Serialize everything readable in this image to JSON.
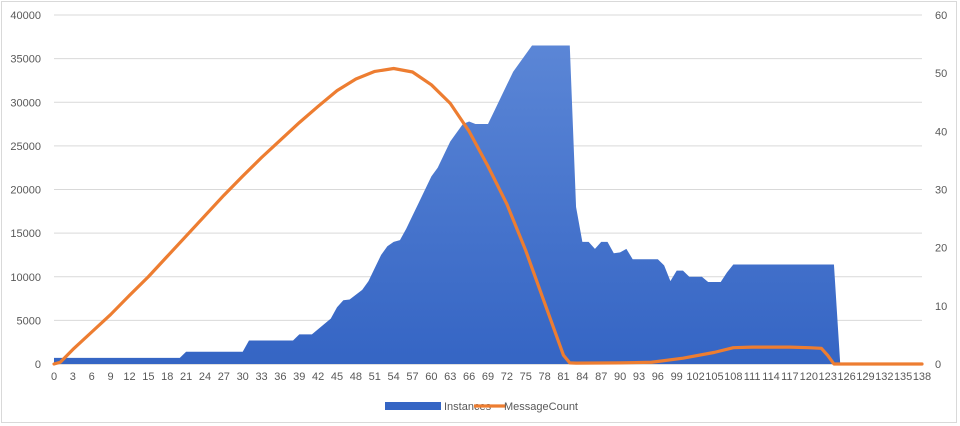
{
  "chart_data": {
    "type": "area",
    "y_left_lim": [
      0,
      40000
    ],
    "y_left_ticks": [
      0,
      5000,
      10000,
      15000,
      20000,
      25000,
      30000,
      35000,
      40000
    ],
    "y_right_lim": [
      0,
      60
    ],
    "y_right_ticks": [
      0,
      10,
      20,
      30,
      40,
      50,
      60
    ],
    "x_lim": [
      0,
      138
    ],
    "x_ticks": [
      0,
      3,
      6,
      9,
      12,
      15,
      18,
      21,
      24,
      27,
      30,
      33,
      36,
      39,
      42,
      45,
      48,
      51,
      54,
      57,
      60,
      63,
      66,
      69,
      72,
      75,
      78,
      81,
      84,
      87,
      90,
      93,
      96,
      99,
      102,
      105,
      108,
      111,
      114,
      117,
      120,
      123,
      126,
      129,
      132,
      135,
      138
    ],
    "grid": true,
    "legend_position": "bottom",
    "series": [
      {
        "name": "Instances",
        "type": "area",
        "axis": "left",
        "color": "#3565c4",
        "points": [
          [
            0,
            700
          ],
          [
            20,
            700
          ],
          [
            21,
            1400
          ],
          [
            30,
            1400
          ],
          [
            31,
            2700
          ],
          [
            38,
            2700
          ],
          [
            39,
            3400
          ],
          [
            41,
            3400
          ],
          [
            42,
            4000
          ],
          [
            44,
            5200
          ],
          [
            45,
            6500
          ],
          [
            46,
            7300
          ],
          [
            47,
            7400
          ],
          [
            49,
            8500
          ],
          [
            50,
            9500
          ],
          [
            51,
            11000
          ],
          [
            52,
            12500
          ],
          [
            53,
            13500
          ],
          [
            54,
            14000
          ],
          [
            55,
            14200
          ],
          [
            56,
            15500
          ],
          [
            57,
            17000
          ],
          [
            58,
            18500
          ],
          [
            59,
            20000
          ],
          [
            60,
            21500
          ],
          [
            61,
            22500
          ],
          [
            62,
            24000
          ],
          [
            63,
            25500
          ],
          [
            64,
            26500
          ],
          [
            65,
            27500
          ],
          [
            66,
            27800
          ],
          [
            67,
            27500
          ],
          [
            69,
            27500
          ],
          [
            70,
            29000
          ],
          [
            71,
            30500
          ],
          [
            72,
            32000
          ],
          [
            73,
            33500
          ],
          [
            74,
            34500
          ],
          [
            75,
            35500
          ],
          [
            76,
            36500
          ],
          [
            82,
            36500
          ],
          [
            83,
            18000
          ],
          [
            84,
            14000
          ],
          [
            85,
            14000
          ],
          [
            86,
            13200
          ],
          [
            87,
            14000
          ],
          [
            88,
            14000
          ],
          [
            89,
            12700
          ],
          [
            90,
            12800
          ],
          [
            91,
            13200
          ],
          [
            92,
            12000
          ],
          [
            96,
            12000
          ],
          [
            97,
            11300
          ],
          [
            98,
            9500
          ],
          [
            99,
            10700
          ],
          [
            100,
            10700
          ],
          [
            101,
            10000
          ],
          [
            103,
            10000
          ],
          [
            104,
            9400
          ],
          [
            106,
            9400
          ],
          [
            107,
            10500
          ],
          [
            108,
            11400
          ],
          [
            124,
            11400
          ],
          [
            125,
            0
          ],
          [
            138,
            0
          ]
        ]
      },
      {
        "name": "MessageCount",
        "type": "line",
        "axis": "right",
        "color": "#ed7d31",
        "points": [
          [
            0,
            0
          ],
          [
            1,
            0.3
          ],
          [
            3,
            2.5
          ],
          [
            6,
            5.5
          ],
          [
            9,
            8.5
          ],
          [
            12,
            11.8
          ],
          [
            15,
            15
          ],
          [
            18,
            18.5
          ],
          [
            21,
            22
          ],
          [
            24,
            25.5
          ],
          [
            27,
            29
          ],
          [
            30,
            32.3
          ],
          [
            33,
            35.5
          ],
          [
            36,
            38.5
          ],
          [
            39,
            41.5
          ],
          [
            42,
            44.3
          ],
          [
            45,
            47
          ],
          [
            48,
            49
          ],
          [
            51,
            50.3
          ],
          [
            54,
            50.8
          ],
          [
            57,
            50.2
          ],
          [
            60,
            48
          ],
          [
            63,
            44.8
          ],
          [
            66,
            40
          ],
          [
            69,
            34
          ],
          [
            72,
            27.5
          ],
          [
            75,
            19.5
          ],
          [
            78,
            10.5
          ],
          [
            80,
            4.5
          ],
          [
            81,
            1.5
          ],
          [
            82,
            0.2
          ],
          [
            83,
            0.15
          ],
          [
            90,
            0.2
          ],
          [
            95,
            0.3
          ],
          [
            100,
            1
          ],
          [
            105,
            2
          ],
          [
            108,
            2.8
          ],
          [
            111,
            2.9
          ],
          [
            117,
            2.9
          ],
          [
            120,
            2.8
          ],
          [
            122,
            2.7
          ],
          [
            123,
            1.5
          ],
          [
            124,
            0
          ],
          [
            138,
            0
          ]
        ]
      }
    ]
  }
}
